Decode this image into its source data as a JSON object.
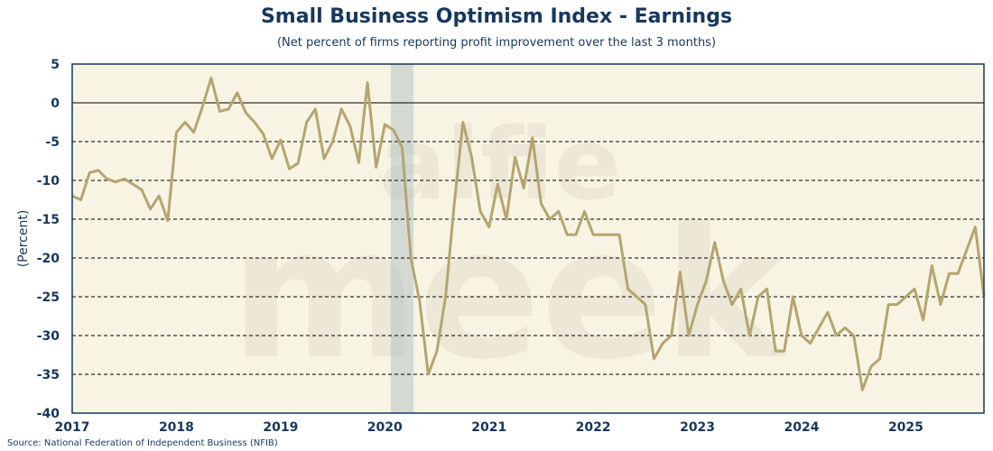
{
  "chart_data": {
    "type": "line",
    "title": "Small Business Optimism Index - Earnings",
    "subtitle": "(Net percent of firms reporting profit improvement over the last 3 months)",
    "xlabel": "",
    "ylabel": "(Percent)",
    "ylim": [
      -40,
      5
    ],
    "yticks": [
      5,
      0,
      -5,
      -10,
      -15,
      -20,
      -25,
      -30,
      -35,
      -40
    ],
    "xticks": [
      "2017",
      "2018",
      "2019",
      "2020",
      "2021",
      "2022",
      "2023",
      "2024",
      "2025"
    ],
    "x_start": "2017-01",
    "frequency": "monthly",
    "recession": {
      "start": "2020-02",
      "end": "2020-04"
    },
    "grid": "dashed horizontal",
    "series": [
      {
        "name": "Earnings",
        "color": "#b5a56e",
        "values": [
          -12,
          -12.5,
          -9,
          -8.7,
          -9.8,
          -10.2,
          -9.8,
          -10.5,
          -11.2,
          -13.7,
          -12,
          -15.2,
          -3.8,
          -2.5,
          -3.8,
          -0.5,
          3.2,
          -1.1,
          -0.8,
          1.3,
          -1.3,
          -2.5,
          -4,
          -7.2,
          -4.8,
          -8.5,
          -7.8,
          -2.5,
          -0.8,
          -7.2,
          -5,
          -0.8,
          -3,
          -7.7,
          2.6,
          -8.3,
          -2.8,
          -3.5,
          -5.8,
          -20,
          -25.5,
          -35,
          -32,
          -25,
          -13,
          -2.5,
          -7,
          -14,
          -16,
          -10.5,
          -15,
          -7,
          -11,
          -4.5,
          -13,
          -15,
          -14,
          -17,
          -17,
          -14,
          -17,
          -17,
          -17,
          -17,
          -24,
          -25,
          -26,
          -33,
          -31,
          -30,
          -21.8,
          -30,
          -26,
          -23,
          -18,
          -23,
          -26,
          -24,
          -30,
          -25,
          -24,
          -32,
          -32,
          -25,
          -30,
          -31,
          -29,
          -27,
          -30,
          -29,
          -30,
          -37,
          -34,
          -33,
          -26,
          -26,
          -25,
          -24,
          -28,
          -21,
          -26,
          -22,
          -22,
          -19,
          -16,
          -25
        ]
      }
    ],
    "watermark": "alfie meek"
  },
  "source": "Source: National Federation of Independent Business (NFIB)"
}
